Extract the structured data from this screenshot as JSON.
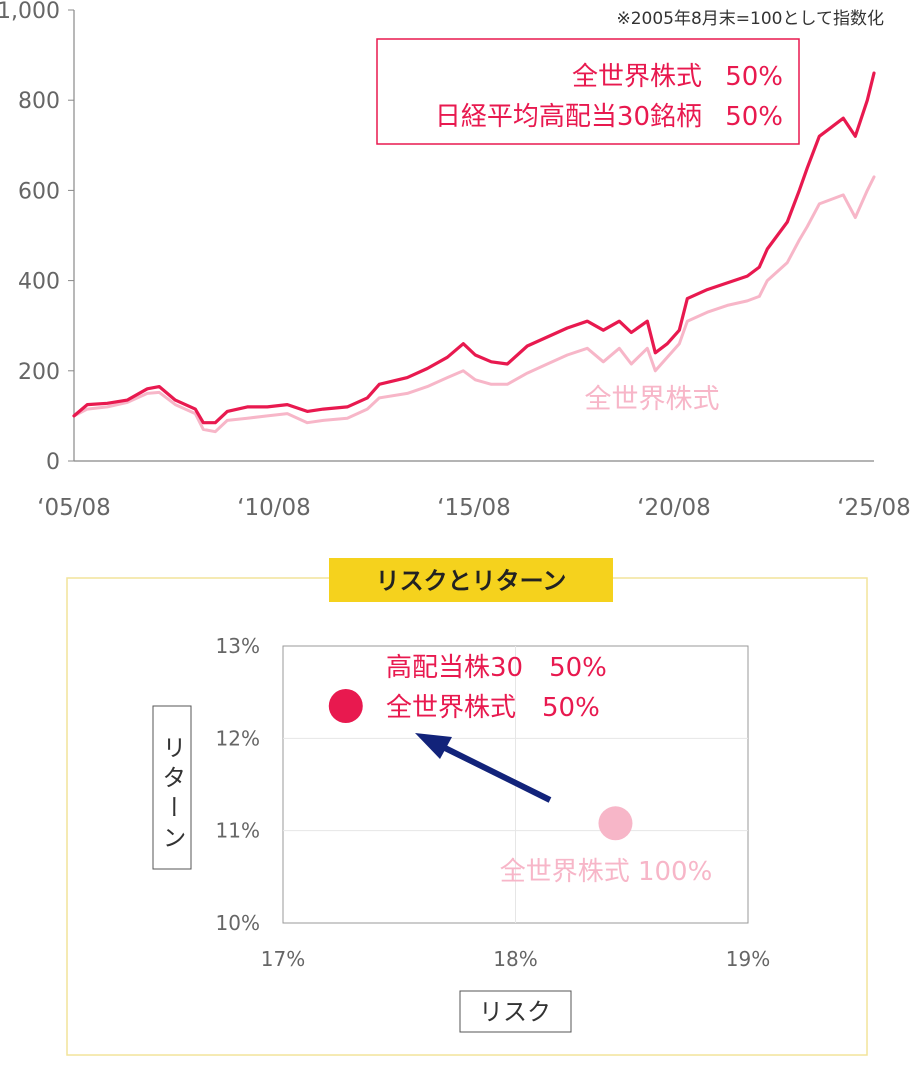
{
  "colors": {
    "mix": "#e8194f",
    "world": "#f7b6c8",
    "axis_text": "#666666",
    "axis_line": "#888888",
    "panel_border": "#f2e49a",
    "title_bg": "#f5d21d",
    "arrow": "#12237a"
  },
  "chart_data": [
    {
      "type": "line",
      "note": "※2005年8月末=100として指数化",
      "ylim": [
        0,
        1000
      ],
      "yticks": [
        "0",
        "200",
        "400",
        "600",
        "800",
        "1,000"
      ],
      "ytick_values": [
        0,
        200,
        400,
        600,
        800,
        1000
      ],
      "xlim": [
        2005.667,
        2025.667
      ],
      "xticks": [
        "‘05/08",
        "‘10/08",
        "‘15/08",
        "‘20/08",
        "‘25/08"
      ],
      "xtick_values": [
        2005.667,
        2010.667,
        2015.667,
        2020.667,
        2025.667
      ],
      "legend": {
        "line1_name": "全世界株式",
        "line1_weight": "50%",
        "line2_name": "日経平均高配当30銘柄",
        "line2_weight": "50%"
      },
      "series_label": "全世界株式",
      "series": [
        {
          "key": "mix",
          "x": [
            2005.667,
            2006.0,
            2006.5,
            2007.0,
            2007.5,
            2007.8,
            2008.2,
            2008.7,
            2008.9,
            2009.2,
            2009.5,
            2010.0,
            2010.5,
            2011.0,
            2011.5,
            2011.9,
            2012.5,
            2013.0,
            2013.3,
            2014.0,
            2014.5,
            2015.0,
            2015.4,
            2015.7,
            2016.1,
            2016.5,
            2017.0,
            2017.5,
            2018.0,
            2018.5,
            2018.9,
            2019.3,
            2019.6,
            2020.0,
            2020.2,
            2020.5,
            2020.8,
            2021.0,
            2021.5,
            2022.0,
            2022.5,
            2022.8,
            2023.0,
            2023.5,
            2023.8,
            2024.0,
            2024.3,
            2024.6,
            2024.9,
            2025.2,
            2025.5,
            2025.667
          ],
          "values": [
            100,
            125,
            128,
            135,
            160,
            165,
            135,
            115,
            85,
            85,
            110,
            120,
            120,
            125,
            110,
            115,
            120,
            140,
            170,
            185,
            205,
            230,
            260,
            235,
            220,
            215,
            255,
            275,
            295,
            310,
            290,
            310,
            285,
            310,
            240,
            260,
            290,
            360,
            380,
            395,
            410,
            430,
            470,
            530,
            600,
            650,
            720,
            740,
            760,
            720,
            800,
            860
          ]
        },
        {
          "key": "world",
          "x": [
            2005.667,
            2006.0,
            2006.5,
            2007.0,
            2007.5,
            2007.8,
            2008.2,
            2008.7,
            2008.9,
            2009.2,
            2009.5,
            2010.0,
            2010.5,
            2011.0,
            2011.5,
            2011.9,
            2012.5,
            2013.0,
            2013.3,
            2014.0,
            2014.5,
            2015.0,
            2015.4,
            2015.7,
            2016.1,
            2016.5,
            2017.0,
            2017.5,
            2018.0,
            2018.5,
            2018.9,
            2019.3,
            2019.6,
            2020.0,
            2020.2,
            2020.5,
            2020.8,
            2021.0,
            2021.5,
            2022.0,
            2022.5,
            2022.8,
            2023.0,
            2023.5,
            2023.8,
            2024.0,
            2024.3,
            2024.6,
            2024.9,
            2025.2,
            2025.5,
            2025.667
          ],
          "values": [
            100,
            115,
            120,
            130,
            150,
            152,
            125,
            105,
            70,
            65,
            90,
            95,
            100,
            105,
            85,
            90,
            95,
            115,
            140,
            150,
            165,
            185,
            200,
            180,
            170,
            170,
            195,
            215,
            235,
            250,
            220,
            250,
            215,
            250,
            200,
            230,
            260,
            310,
            330,
            345,
            355,
            365,
            400,
            440,
            490,
            520,
            570,
            580,
            590,
            540,
            600,
            630
          ]
        }
      ]
    },
    {
      "type": "scatter",
      "title": "リスクとリターン",
      "xlabel": "リスク",
      "ylabel": "リターン",
      "xlim": [
        17,
        19
      ],
      "ylim": [
        10,
        13
      ],
      "xticks": [
        "17%",
        "18%",
        "19%"
      ],
      "xtick_values": [
        17,
        18,
        19
      ],
      "yticks": [
        "10%",
        "11%",
        "12%",
        "13%"
      ],
      "ytick_values": [
        10,
        11,
        12,
        13
      ],
      "points": [
        {
          "key": "mix",
          "x": 17.27,
          "y": 12.35,
          "label_line1": "高配当株30　50%",
          "label_line2": "全世界株式　50%"
        },
        {
          "key": "world",
          "x": 18.43,
          "y": 11.08,
          "label": "全世界株式 100%"
        }
      ]
    }
  ]
}
